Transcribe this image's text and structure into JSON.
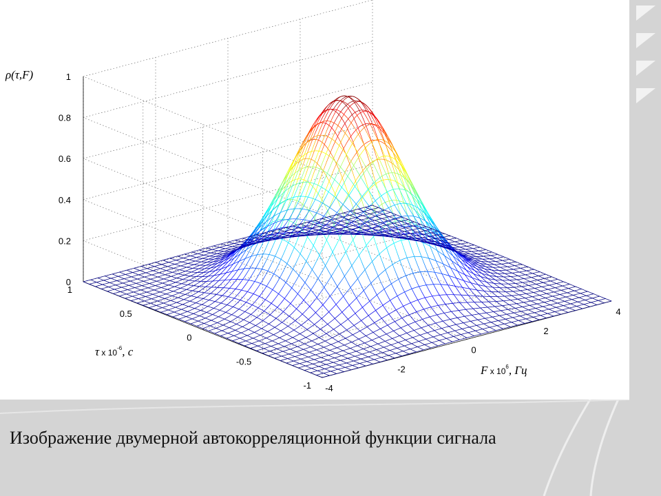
{
  "slide": {
    "caption": "Изображение двумерной автокорреляционной функции сигнала"
  },
  "colors": {
    "slide_background": "#d4d4d4",
    "wave_stroke": "#eeeeee",
    "panel": "#ffffff"
  },
  "chart_data": {
    "type": "surface",
    "surface": "gaussian",
    "colormap": "jet",
    "peak": 0.95,
    "grid_lines": 41,
    "grid": true,
    "zlabel": "ρ(τ,F)",
    "ylabel": {
      "symbol": "τ",
      "unit_prefix": " x 10",
      "exponent": "-6",
      "unit": ", c"
    },
    "xlabel": {
      "symbol": "F",
      "unit_prefix": " x 10",
      "exponent": "6",
      "unit": ", Гц"
    },
    "zlim": [
      0,
      1
    ],
    "zticks": [
      {
        "value": 0,
        "label": "0"
      },
      {
        "value": 0.2,
        "label": "0.2"
      },
      {
        "value": 0.4,
        "label": "0.4"
      },
      {
        "value": 0.6,
        "label": "0.6"
      },
      {
        "value": 0.8,
        "label": "0.8"
      },
      {
        "value": 1,
        "label": "1"
      }
    ],
    "tau_lim": [
      -1,
      1
    ],
    "tau_ticks": [
      {
        "value": 1,
        "label": "1"
      },
      {
        "value": 0.5,
        "label": "0.5"
      },
      {
        "value": 0,
        "label": "0"
      },
      {
        "value": -0.5,
        "label": "-0.5"
      },
      {
        "value": -1,
        "label": "-1"
      }
    ],
    "f_lim": [
      -4,
      4
    ],
    "f_ticks": [
      {
        "value": -4,
        "label": "-4"
      },
      {
        "value": -2,
        "label": "-2"
      },
      {
        "value": 0,
        "label": "0"
      },
      {
        "value": 2,
        "label": "2"
      },
      {
        "value": 4,
        "label": "4"
      }
    ]
  }
}
